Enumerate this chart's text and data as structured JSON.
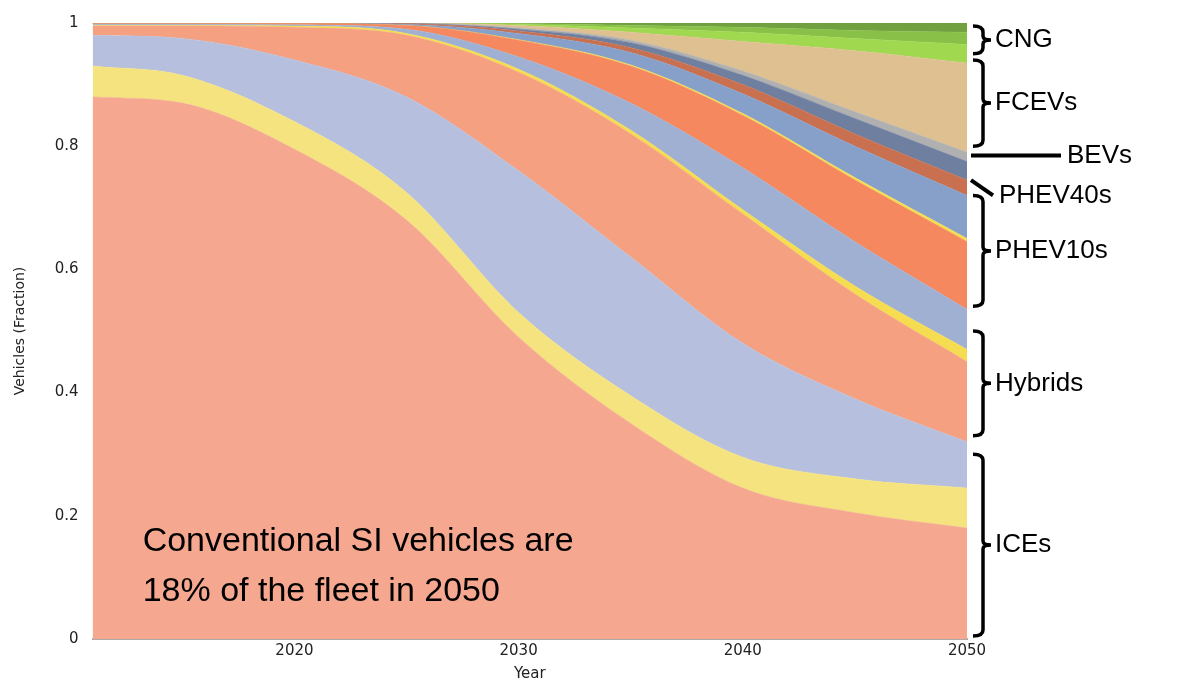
{
  "chart_data": {
    "type": "area",
    "stacked": true,
    "xlabel": "Year",
    "ylabel": "Vehicles (Fraction)",
    "x": [
      2011,
      2015,
      2020,
      2025,
      2030,
      2035,
      2040,
      2045,
      2050
    ],
    "xlim": [
      2011,
      2050
    ],
    "xticks": [
      2020,
      2030,
      2040,
      2050
    ],
    "ylim": [
      0,
      1
    ],
    "yticks": [
      0,
      0.2,
      0.4,
      0.6,
      0.8,
      1
    ],
    "grid": false,
    "legend": false,
    "marker": "none",
    "series": [
      {
        "color": "#f5a88f",
        "values": [
          0.88,
          0.87,
          0.795,
          0.68,
          0.49,
          0.35,
          0.245,
          0.205,
          0.18
        ]
      },
      {
        "color": "#f5e37f",
        "values": [
          0.05,
          0.045,
          0.045,
          0.045,
          0.04,
          0.045,
          0.05,
          0.055,
          0.065
        ]
      },
      {
        "color": "#b6c0de",
        "values": [
          0.05,
          0.06,
          0.1,
          0.155,
          0.23,
          0.225,
          0.185,
          0.13,
          0.075
        ]
      },
      {
        "color": "#f5a081",
        "values": [
          0.015,
          0.02,
          0.053,
          0.1,
          0.16,
          0.2,
          0.21,
          0.17,
          0.13
        ]
      },
      {
        "color": "#f5dc50",
        "values": [
          0.001,
          0.001,
          0.002,
          0.003,
          0.005,
          0.006,
          0.007,
          0.013,
          0.02
        ]
      },
      {
        "color": "#a0b0d2",
        "values": [
          0.002,
          0.002,
          0.002,
          0.007,
          0.02,
          0.044,
          0.068,
          0.072,
          0.065
        ]
      },
      {
        "color": "#f5885e",
        "values": [
          0.001,
          0.001,
          0.002,
          0.006,
          0.027,
          0.06,
          0.085,
          0.1,
          0.11
        ]
      },
      {
        "color": "#f5dc50",
        "values": [
          0,
          0,
          0,
          0,
          0.001,
          0.002,
          0.003,
          0.004,
          0.005
        ]
      },
      {
        "color": "#86a0ca",
        "values": [
          0.001,
          0.001,
          0.001,
          0.002,
          0.01,
          0.02,
          0.032,
          0.051,
          0.07
        ]
      },
      {
        "color": "#c87050",
        "values": [
          0,
          0,
          0,
          0.001,
          0.004,
          0.008,
          0.015,
          0.02,
          0.025
        ]
      },
      {
        "color": "#6e7fa0",
        "values": [
          0,
          0,
          0,
          0,
          0.003,
          0.008,
          0.015,
          0.025,
          0.03
        ]
      },
      {
        "color": "#b0b0b0",
        "values": [
          0,
          0,
          0,
          0.001,
          0.002,
          0.004,
          0.007,
          0.011,
          0.015
        ]
      },
      {
        "color": "#dfc090",
        "values": [
          0,
          0,
          0,
          0,
          0.004,
          0.013,
          0.048,
          0.099,
          0.145
        ]
      },
      {
        "color": "#a0d850",
        "values": [
          0,
          0,
          0,
          0,
          0.002,
          0.007,
          0.015,
          0.02,
          0.03
        ]
      },
      {
        "color": "#88c048",
        "values": [
          0,
          0,
          0,
          0,
          0.001,
          0.004,
          0.008,
          0.013,
          0.02
        ]
      },
      {
        "color": "#70a040",
        "values": [
          0,
          0,
          0,
          0,
          0.001,
          0.004,
          0.007,
          0.012,
          0.015
        ]
      }
    ],
    "annotations": [
      "Conventional SI vehicles are\n18% of the fleet in 2050",
      "ICEs",
      "Hybrids",
      "PHEV10s",
      "PHEV40s",
      "BEVs",
      "FCEVs",
      "CNG"
    ]
  }
}
